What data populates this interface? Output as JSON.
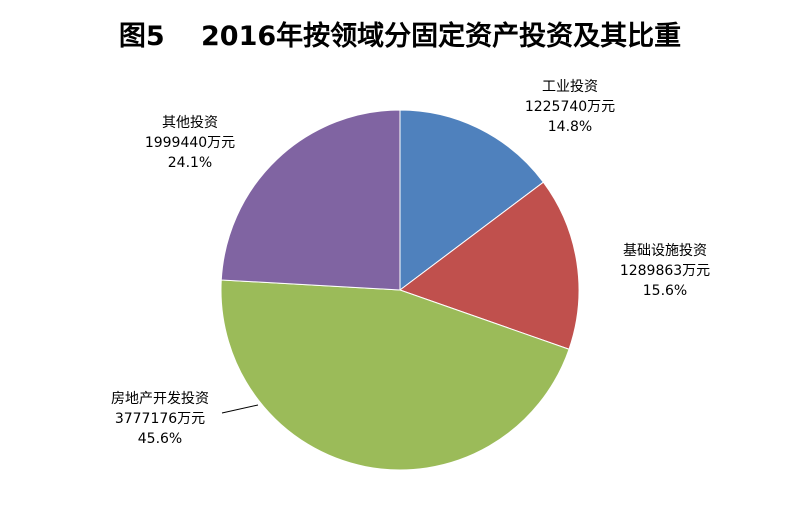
{
  "chart_data": {
    "type": "pie",
    "title": "图5　 2016年按领域分固定资产投资及其比重",
    "unit": "万元",
    "slices": [
      {
        "name": "工业投资",
        "value": 1225740,
        "value_text": "1225740万元",
        "percent_text": "14.8%",
        "color": "#4F81BD"
      },
      {
        "name": "基础设施投资",
        "value": 1289863,
        "value_text": "1289863万元",
        "percent_text": "15.6%",
        "color": "#C0504D"
      },
      {
        "name": "房地产开发投资",
        "value": 3777176,
        "value_text": "3777176万元",
        "percent_text": "45.6%",
        "color": "#9BBB59"
      },
      {
        "name": "其他投资",
        "value": 1999440,
        "value_text": "1999440万元",
        "percent_text": "24.1%",
        "color": "#8064A2"
      }
    ]
  }
}
